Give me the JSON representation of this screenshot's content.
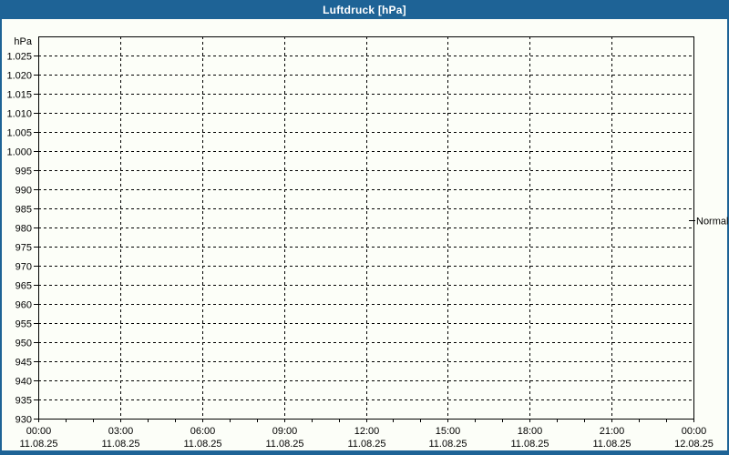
{
  "window": {
    "title": "Luftdruck [hPa]"
  },
  "colors": {
    "frame": "#1E6396",
    "title_text": "#FFFFFF",
    "canvas": "#FCFEF8",
    "grid": "#000000",
    "label_text": "#000000"
  },
  "chart_data": {
    "type": "line",
    "title": "Luftdruck [hPa]",
    "y_unit": "hPa",
    "ylim": [
      930,
      1030
    ],
    "ytick_step": 5,
    "yticks": [
      {
        "value": 1025,
        "label": "1.025"
      },
      {
        "value": 1020,
        "label": "1.020"
      },
      {
        "value": 1015,
        "label": "1.015"
      },
      {
        "value": 1010,
        "label": "1.010"
      },
      {
        "value": 1005,
        "label": "1.005"
      },
      {
        "value": 1000,
        "label": "1.000"
      },
      {
        "value": 995,
        "label": "995"
      },
      {
        "value": 990,
        "label": "990"
      },
      {
        "value": 985,
        "label": "985"
      },
      {
        "value": 980,
        "label": "980"
      },
      {
        "value": 975,
        "label": "975"
      },
      {
        "value": 970,
        "label": "970"
      },
      {
        "value": 965,
        "label": "965"
      },
      {
        "value": 960,
        "label": "960"
      },
      {
        "value": 955,
        "label": "955"
      },
      {
        "value": 950,
        "label": "950"
      },
      {
        "value": 945,
        "label": "945"
      },
      {
        "value": 940,
        "label": "940"
      },
      {
        "value": 935,
        "label": "935"
      },
      {
        "value": 930,
        "label": "930"
      }
    ],
    "xlim_hours": [
      0,
      24
    ],
    "minor_xtick_hours": 1,
    "xticks": [
      {
        "hour": 0,
        "time": "00:00",
        "date": "11.08.25"
      },
      {
        "hour": 3,
        "time": "03:00",
        "date": "11.08.25"
      },
      {
        "hour": 6,
        "time": "06:00",
        "date": "11.08.25"
      },
      {
        "hour": 9,
        "time": "09:00",
        "date": "11.08.25"
      },
      {
        "hour": 12,
        "time": "12:00",
        "date": "11.08.25"
      },
      {
        "hour": 15,
        "time": "15:00",
        "date": "11.08.25"
      },
      {
        "hour": 18,
        "time": "18:00",
        "date": "11.08.25"
      },
      {
        "hour": 21,
        "time": "21:00",
        "date": "11.08.25"
      },
      {
        "hour": 24,
        "time": "00:00",
        "date": "12.08.25"
      }
    ],
    "grid": "dashed",
    "series": [],
    "annotations": [
      {
        "label": "Normal",
        "value": 982,
        "side": "right"
      }
    ]
  }
}
